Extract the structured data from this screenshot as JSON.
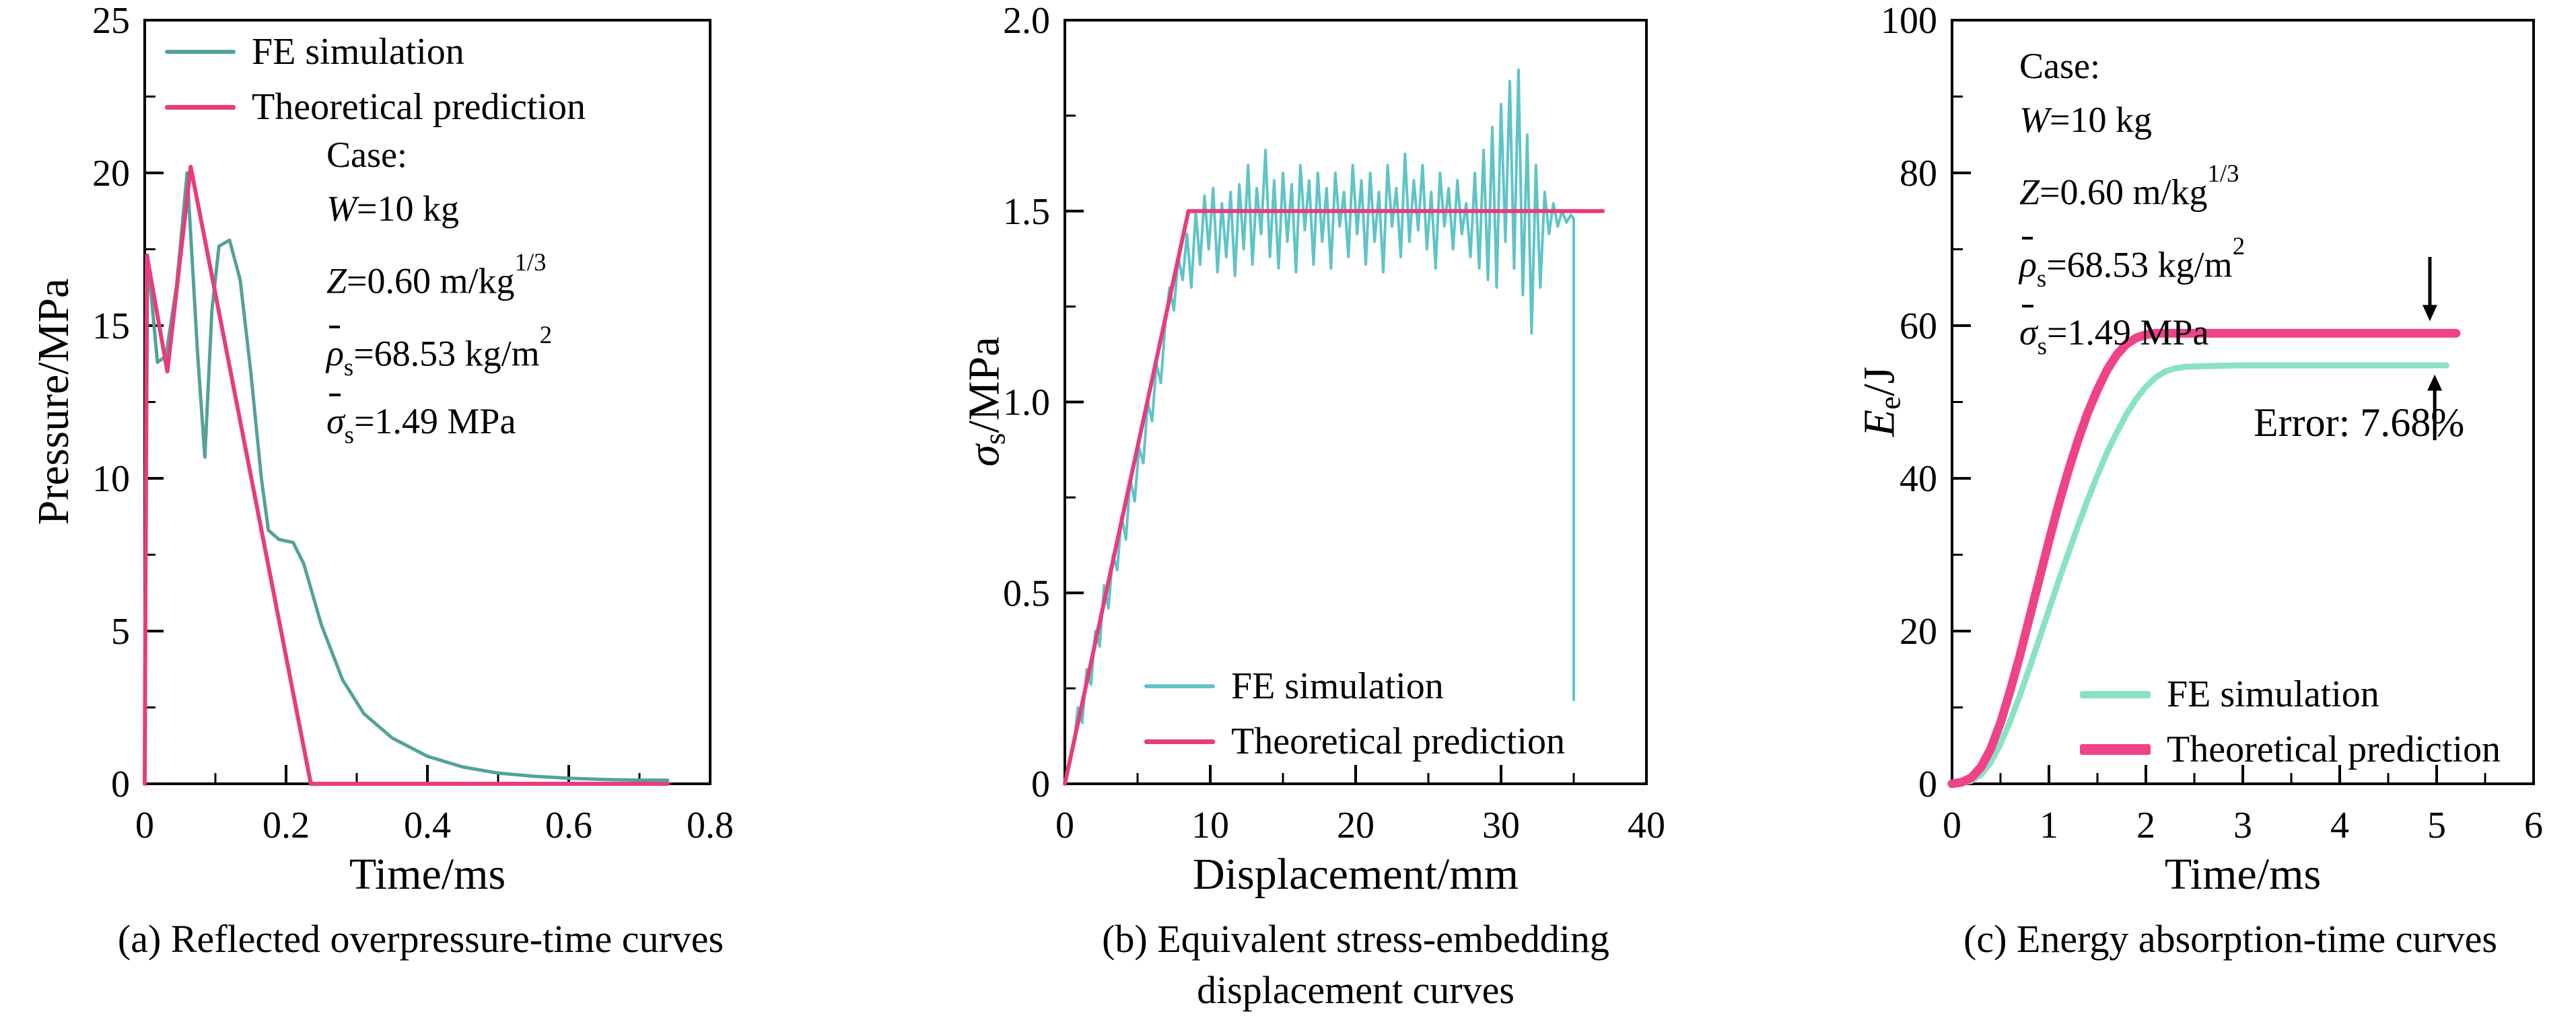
{
  "case_block": {
    "title": "Case:",
    "lines": [
      {
        "var": "W",
        "rest": "=10 kg"
      },
      {
        "var": "Z",
        "rest": "=0.60 m/kg",
        "sup": "1/3"
      },
      {
        "var": "ρ",
        "ov": true,
        "sub": "s",
        "rest": "=68.53 kg/m",
        "sup": "2"
      },
      {
        "var": "σ",
        "ov": true,
        "sub": "s",
        "rest": "=1.49 MPa"
      }
    ]
  },
  "chart_data": [
    {
      "type": "line",
      "caption": "(a) Reflected overpressure-time curves",
      "xlabel": "Time/ms",
      "ylabel_parts": [
        {
          "t": "Pressure/MPa"
        }
      ],
      "xlim": [
        0,
        0.8
      ],
      "ylim": [
        0,
        25
      ],
      "xticks": {
        "values": [
          0,
          0.2,
          0.4,
          0.6,
          0.8
        ],
        "labels": [
          "0",
          "0.2",
          "0.4",
          "0.6",
          "0.8"
        ]
      },
      "yticks": {
        "values": [
          0,
          5,
          10,
          15,
          20,
          25
        ],
        "labels": [
          "0",
          "5",
          "10",
          "15",
          "20",
          "25"
        ]
      },
      "minor_x": 0.1,
      "minor_y": 2.5,
      "grid": false,
      "legend_position": "top-left",
      "series": [
        {
          "name": "FE simulation",
          "color": "#54a29a",
          "width": 5,
          "points": [
            [
              0,
              0
            ],
            [
              0.004,
              17.3
            ],
            [
              0.018,
              13.8
            ],
            [
              0.03,
              14
            ],
            [
              0.045,
              16.3
            ],
            [
              0.06,
              20
            ],
            [
              0.075,
              14
            ],
            [
              0.085,
              10.7
            ],
            [
              0.095,
              15.5
            ],
            [
              0.105,
              17.6
            ],
            [
              0.12,
              17.8
            ],
            [
              0.135,
              16.5
            ],
            [
              0.15,
              13.5
            ],
            [
              0.165,
              10
            ],
            [
              0.175,
              8.3
            ],
            [
              0.19,
              8
            ],
            [
              0.21,
              7.9
            ],
            [
              0.225,
              7.2
            ],
            [
              0.25,
              5.2
            ],
            [
              0.28,
              3.4
            ],
            [
              0.31,
              2.3
            ],
            [
              0.35,
              1.5
            ],
            [
              0.4,
              0.9
            ],
            [
              0.45,
              0.55
            ],
            [
              0.5,
              0.35
            ],
            [
              0.55,
              0.25
            ],
            [
              0.6,
              0.18
            ],
            [
              0.65,
              0.14
            ],
            [
              0.7,
              0.12
            ],
            [
              0.74,
              0.12
            ]
          ]
        },
        {
          "name": "Theoretical prediction",
          "color": "#e73c7d",
          "width": 6,
          "points": [
            [
              0,
              0
            ],
            [
              0.003,
              17.3
            ],
            [
              0.032,
              13.5
            ],
            [
              0.065,
              20.2
            ],
            [
              0.235,
              0
            ],
            [
              0.74,
              0
            ]
          ]
        }
      ]
    },
    {
      "type": "line",
      "caption": "(b) Equivalent stress-embedding\ndisplacement curves",
      "xlabel": "Displacement/mm",
      "ylabel_parts": [
        {
          "t": "σ",
          "i": true
        },
        {
          "t": "s",
          "sub": true
        },
        {
          "t": "/MPa"
        }
      ],
      "xlim": [
        0,
        40
      ],
      "ylim": [
        0,
        2.0
      ],
      "xticks": {
        "values": [
          0,
          10,
          20,
          30,
          40
        ],
        "labels": [
          "0",
          "10",
          "20",
          "30",
          "40"
        ]
      },
      "yticks": {
        "values": [
          0,
          0.5,
          1,
          1.5,
          2
        ],
        "labels": [
          "0",
          "0.5",
          "1.0",
          "1.5",
          "2.0"
        ]
      },
      "minor_x": 5,
      "minor_y": 0.25,
      "grid": false,
      "legend_position": "bottom-left",
      "series": [
        {
          "name": "FE simulation",
          "color": "#5fc4c8",
          "width": 4,
          "points": [
            [
              0,
              0
            ],
            [
              0.3,
              0.06
            ],
            [
              0.6,
              0.1
            ],
            [
              0.9,
              0.2
            ],
            [
              1.2,
              0.16
            ],
            [
              1.5,
              0.3
            ],
            [
              1.8,
              0.26
            ],
            [
              2.1,
              0.4
            ],
            [
              2.4,
              0.36
            ],
            [
              2.7,
              0.52
            ],
            [
              3,
              0.46
            ],
            [
              3.3,
              0.6
            ],
            [
              3.6,
              0.56
            ],
            [
              3.9,
              0.7
            ],
            [
              4.2,
              0.64
            ],
            [
              4.5,
              0.8
            ],
            [
              4.8,
              0.74
            ],
            [
              5.1,
              0.88
            ],
            [
              5.4,
              0.84
            ],
            [
              5.7,
              1
            ],
            [
              6,
              0.95
            ],
            [
              6.3,
              1.1
            ],
            [
              6.6,
              1.05
            ],
            [
              6.9,
              1.2
            ],
            [
              7.2,
              1.3
            ],
            [
              7.5,
              1.24
            ],
            [
              7.8,
              1.38
            ],
            [
              8.1,
              1.32
            ],
            [
              8.4,
              1.44
            ],
            [
              8.7,
              1.3
            ],
            [
              9,
              1.5
            ],
            [
              9.3,
              1.36
            ],
            [
              9.6,
              1.54
            ],
            [
              9.9,
              1.4
            ],
            [
              10.2,
              1.56
            ],
            [
              10.5,
              1.34
            ],
            [
              10.8,
              1.52
            ],
            [
              11.1,
              1.38
            ],
            [
              11.4,
              1.55
            ],
            [
              11.7,
              1.33
            ],
            [
              12,
              1.57
            ],
            [
              12.3,
              1.4
            ],
            [
              12.6,
              1.62
            ],
            [
              12.9,
              1.36
            ],
            [
              13.2,
              1.56
            ],
            [
              13.5,
              1.44
            ],
            [
              13.8,
              1.66
            ],
            [
              14.1,
              1.38
            ],
            [
              14.4,
              1.58
            ],
            [
              14.7,
              1.35
            ],
            [
              15,
              1.6
            ],
            [
              15.3,
              1.42
            ],
            [
              15.6,
              1.57
            ],
            [
              15.9,
              1.34
            ],
            [
              16.2,
              1.62
            ],
            [
              16.5,
              1.45
            ],
            [
              16.8,
              1.58
            ],
            [
              17.1,
              1.36
            ],
            [
              17.4,
              1.6
            ],
            [
              17.7,
              1.42
            ],
            [
              18,
              1.56
            ],
            [
              18.3,
              1.35
            ],
            [
              18.6,
              1.6
            ],
            [
              18.9,
              1.46
            ],
            [
              19.2,
              1.55
            ],
            [
              19.5,
              1.38
            ],
            [
              19.8,
              1.62
            ],
            [
              20.1,
              1.44
            ],
            [
              20.4,
              1.58
            ],
            [
              20.7,
              1.36
            ],
            [
              21,
              1.6
            ],
            [
              21.3,
              1.42
            ],
            [
              21.6,
              1.55
            ],
            [
              21.9,
              1.34
            ],
            [
              22.2,
              1.62
            ],
            [
              22.5,
              1.46
            ],
            [
              22.8,
              1.56
            ],
            [
              23.1,
              1.38
            ],
            [
              23.4,
              1.65
            ],
            [
              23.7,
              1.42
            ],
            [
              24,
              1.58
            ],
            [
              24.3,
              1.45
            ],
            [
              24.6,
              1.62
            ],
            [
              24.9,
              1.4
            ],
            [
              25.2,
              1.55
            ],
            [
              25.5,
              1.35
            ],
            [
              25.8,
              1.6
            ],
            [
              26.1,
              1.46
            ],
            [
              26.4,
              1.56
            ],
            [
              26.7,
              1.4
            ],
            [
              27,
              1.58
            ],
            [
              27.3,
              1.44
            ],
            [
              27.6,
              1.52
            ],
            [
              27.9,
              1.38
            ],
            [
              28.2,
              1.6
            ],
            [
              28.5,
              1.35
            ],
            [
              28.8,
              1.66
            ],
            [
              29.1,
              1.32
            ],
            [
              29.4,
              1.72
            ],
            [
              29.7,
              1.3
            ],
            [
              30,
              1.78
            ],
            [
              30.3,
              1.42
            ],
            [
              30.6,
              1.84
            ],
            [
              30.9,
              1.35
            ],
            [
              31.2,
              1.87
            ],
            [
              31.5,
              1.28
            ],
            [
              31.8,
              1.7
            ],
            [
              32.1,
              1.18
            ],
            [
              32.4,
              1.62
            ],
            [
              32.7,
              1.3
            ],
            [
              33,
              1.55
            ],
            [
              33.3,
              1.44
            ],
            [
              33.6,
              1.52
            ],
            [
              33.9,
              1.46
            ],
            [
              34.2,
              1.5
            ],
            [
              34.5,
              1.47
            ],
            [
              34.8,
              1.49
            ],
            [
              35,
              1.48
            ],
            [
              35,
              0.22
            ]
          ]
        },
        {
          "name": "Theoretical prediction",
          "color": "#e73c7d",
          "width": 6,
          "points": [
            [
              0,
              0
            ],
            [
              8.5,
              1.5
            ],
            [
              37,
              1.5
            ]
          ]
        }
      ]
    },
    {
      "type": "line",
      "caption": "(c) Energy absorption-time curves",
      "xlabel": "Time/ms",
      "ylabel_parts": [
        {
          "t": "E",
          "i": true
        },
        {
          "t": "e",
          "sub": true
        },
        {
          "t": "/J"
        }
      ],
      "xlim": [
        0,
        6
      ],
      "ylim": [
        0,
        100
      ],
      "xticks": {
        "values": [
          0,
          1,
          2,
          3,
          4,
          5,
          6
        ],
        "labels": [
          "0",
          "1",
          "2",
          "3",
          "4",
          "5",
          "6"
        ]
      },
      "yticks": {
        "values": [
          0,
          20,
          40,
          60,
          80,
          100
        ],
        "labels": [
          "0",
          "20",
          "40",
          "60",
          "80",
          "100"
        ]
      },
      "minor_x": 0.5,
      "minor_y": 10,
      "grid": false,
      "legend_position": "bottom-right",
      "series": [
        {
          "name": "FE simulation",
          "color": "#8ae2c4",
          "width": 9,
          "points": [
            [
              0,
              0
            ],
            [
              0.1,
              0.1
            ],
            [
              0.2,
              0.4
            ],
            [
              0.3,
              1.2
            ],
            [
              0.4,
              2.8
            ],
            [
              0.5,
              5.2
            ],
            [
              0.6,
              8.2
            ],
            [
              0.7,
              11.6
            ],
            [
              0.8,
              15.2
            ],
            [
              0.9,
              19
            ],
            [
              1,
              22.8
            ],
            [
              1.1,
              26.6
            ],
            [
              1.2,
              30.2
            ],
            [
              1.3,
              33.8
            ],
            [
              1.4,
              37.2
            ],
            [
              1.5,
              40.4
            ],
            [
              1.6,
              43.4
            ],
            [
              1.7,
              46
            ],
            [
              1.8,
              48.4
            ],
            [
              1.9,
              50.4
            ],
            [
              2,
              52
            ],
            [
              2.1,
              53.2
            ],
            [
              2.2,
              54
            ],
            [
              2.3,
              54.4
            ],
            [
              2.4,
              54.6
            ],
            [
              2.6,
              54.7
            ],
            [
              3,
              54.8
            ],
            [
              3.5,
              54.8
            ],
            [
              4,
              54.8
            ],
            [
              4.5,
              54.8
            ],
            [
              5,
              54.8
            ],
            [
              5.1,
              54.8
            ]
          ]
        },
        {
          "name": "Theoretical prediction",
          "color": "#f04289",
          "width": 13,
          "points": [
            [
              0,
              0
            ],
            [
              0.1,
              0.2
            ],
            [
              0.2,
              0.8
            ],
            [
              0.3,
              2.2
            ],
            [
              0.4,
              4.6
            ],
            [
              0.5,
              8
            ],
            [
              0.6,
              12.2
            ],
            [
              0.7,
              16.8
            ],
            [
              0.8,
              21.8
            ],
            [
              0.9,
              26.8
            ],
            [
              1,
              31.8
            ],
            [
              1.1,
              36.6
            ],
            [
              1.2,
              41
            ],
            [
              1.3,
              45
            ],
            [
              1.4,
              48.6
            ],
            [
              1.5,
              51.6
            ],
            [
              1.6,
              54.2
            ],
            [
              1.7,
              56.2
            ],
            [
              1.8,
              57.6
            ],
            [
              1.9,
              58.4
            ],
            [
              2,
              58.8
            ],
            [
              2.1,
              59
            ],
            [
              2.5,
              59
            ],
            [
              3,
              59
            ],
            [
              4,
              59
            ],
            [
              5,
              59
            ],
            [
              5.2,
              59
            ]
          ]
        }
      ],
      "annotation": {
        "label": "Error: 7.68%",
        "arrows": [
          {
            "x": 4.93,
            "from": 69,
            "to": 60.6
          },
          {
            "x": 4.98,
            "from": 45,
            "to": 53.6
          }
        ]
      }
    }
  ]
}
